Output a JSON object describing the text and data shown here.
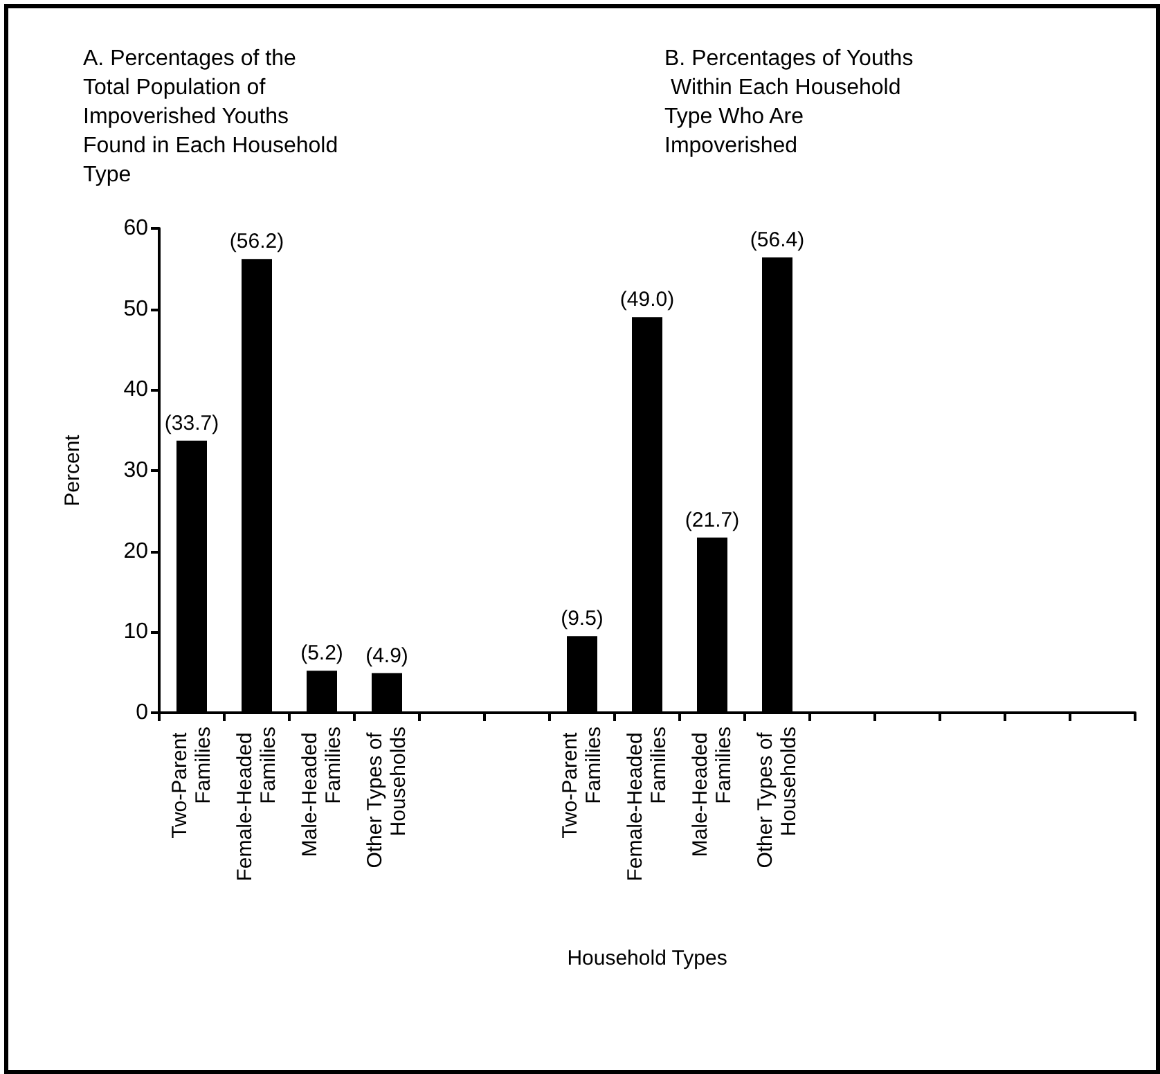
{
  "chart_data": {
    "type": "bar",
    "xlabel": "Household Types",
    "ylabel": "Percent",
    "annotations": [
      "A. Percentages of the Total Population of Impoverished Youths Found in Each Household Type",
      "B. Percentages of Youths Within Each Household Type Who Are Impoverished"
    ],
    "categories": [
      "Two-Parent Families",
      "Female-Headed Families",
      "Male-Headed Families",
      "Other Types of Households",
      null,
      null,
      "Two-Parent Families",
      "Female-Headed Families",
      "Male-Headed Families",
      "Other Types of Households",
      null,
      null,
      null,
      null,
      null
    ],
    "values": [
      33.7,
      56.2,
      5.2,
      4.9,
      null,
      null,
      9.5,
      49.0,
      21.7,
      56.4,
      null,
      null,
      null,
      null,
      null
    ],
    "value_labels": [
      "(33.7)",
      "(56.2)",
      "(5.2)",
      "(4.9)",
      null,
      null,
      "(9.5)",
      "(49.0)",
      "(21.7)",
      "(56.4)",
      null,
      null,
      null,
      null,
      null
    ],
    "color": "#000000",
    "ylim": [
      0,
      60
    ],
    "yticks": [
      0,
      10,
      20,
      30,
      40,
      50,
      60
    ],
    "grid": false
  }
}
